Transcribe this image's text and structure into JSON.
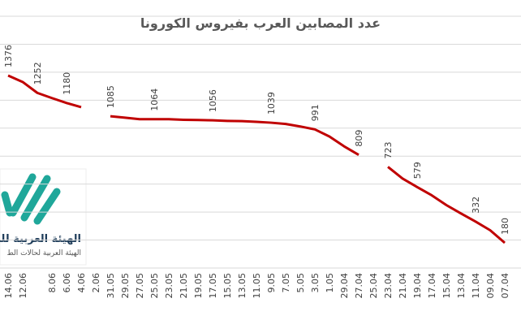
{
  "chart_data": {
    "type": "line",
    "title": "عدد المصابين العرب بفيروس الكورونا",
    "categories": [
      "14.06",
      "12.06",
      null,
      "8.06",
      "6.06",
      "4.06",
      "2.06",
      "31.05",
      "29.05",
      "27.05",
      "25.05",
      "23.05",
      "21.05",
      "19.05",
      "17.05",
      "15.05",
      "13.05",
      "11.05",
      "9.05",
      "7.05",
      "5.05",
      "3.05",
      "1.05",
      "29.04",
      "27.04",
      "25.04",
      "23.04",
      "21.04",
      "19.04",
      "17.04",
      "15.04",
      "13.04",
      "11.04",
      "09.04",
      "07.04"
    ],
    "series": [
      {
        "name": "المصابين",
        "color": "#c00000",
        "values": [
          1376,
          1330,
          1252,
          1215,
          1180,
          1150,
          null,
          1085,
          1075,
          1064,
          1064,
          1064,
          1060,
          1058,
          1056,
          1052,
          1050,
          1045,
          1039,
          1030,
          1012,
          991,
          940,
          870,
          809,
          null,
          723,
          640,
          579,
          520,
          450,
          390,
          332,
          270,
          180
        ],
        "value_labels": [
          "1376",
          null,
          "1252",
          null,
          "1180",
          null,
          null,
          "1085",
          null,
          null,
          "1064",
          null,
          null,
          null,
          "1056",
          null,
          null,
          null,
          "1039",
          null,
          null,
          "991",
          null,
          null,
          "809",
          null,
          "723",
          null,
          "579",
          null,
          null,
          null,
          "332",
          null,
          "180"
        ]
      }
    ],
    "ylim": [
      0,
      1800
    ],
    "yticks": [
      0,
      200,
      400,
      600,
      800,
      1000,
      1200,
      1400,
      1600,
      1800
    ],
    "grid": true,
    "logo_text": [
      "الهيئة العربية للط",
      "الهيئة العربية لحالات الط"
    ]
  }
}
